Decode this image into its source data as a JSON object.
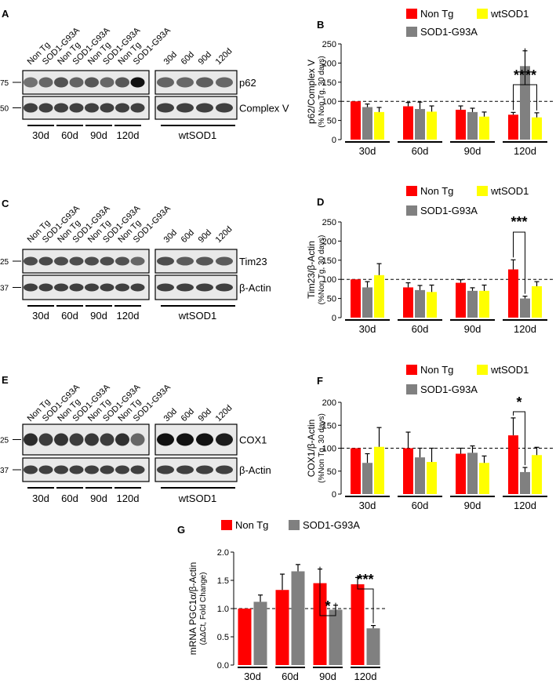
{
  "colors": {
    "non_tg": "#ff0000",
    "wt_sod1": "#ffff00",
    "sod1_g93a": "#808080"
  },
  "western_blots": [
    {
      "panel_label": "A",
      "lane_labels_left": [
        "Non Tg",
        "SOD1-G93A",
        "Non Tg",
        "SOD1-G93A",
        "Non Tg",
        "SOD1-G93A",
        "Non Tg",
        "SOD1-G93A"
      ],
      "lane_labels_right": [
        "30d",
        "60d",
        "90d",
        "120d"
      ],
      "bands": [
        {
          "name": "p62",
          "marker": "75"
        },
        {
          "name": "Complex V",
          "marker": "50"
        }
      ],
      "groups": [
        "30d",
        "60d",
        "90d",
        "120d"
      ],
      "wt_group": "wtSOD1"
    },
    {
      "panel_label": "C",
      "lane_labels_left": [
        "Non Tg",
        "SOD1-G93A",
        "Non Tg",
        "SOD1-G93A",
        "Non Tg",
        "SOD1-G93A",
        "Non Tg",
        "SOD1-G93A"
      ],
      "lane_labels_right": [
        "30d",
        "60d",
        "90d",
        "120d"
      ],
      "bands": [
        {
          "name": "Tim23",
          "marker": "25"
        },
        {
          "name": "β-Actin",
          "marker": "37"
        }
      ],
      "groups": [
        "30d",
        "60d",
        "90d",
        "120d"
      ],
      "wt_group": "wtSOD1"
    },
    {
      "panel_label": "E",
      "lane_labels_left": [
        "Non Tg",
        "SOD1-G93A",
        "Non Tg",
        "SOD1-G93A",
        "Non Tg",
        "SOD1-G93A",
        "Non Tg",
        "SOD1-G93A"
      ],
      "lane_labels_right": [
        "30d",
        "60d",
        "90d",
        "120d"
      ],
      "bands": [
        {
          "name": "COX1",
          "marker": "25"
        },
        {
          "name": "β-Actin",
          "marker": "37"
        }
      ],
      "groups": [
        "30d",
        "60d",
        "90d",
        "120d"
      ],
      "wt_group": "wtSOD1"
    }
  ],
  "chart_data": [
    {
      "panel_label": "B",
      "type": "bar",
      "ylabel": "p62/Complex V",
      "ylabel2": "(% Non Tg, 30 days)",
      "ylim": [
        0,
        250
      ],
      "yticks": [
        0,
        50,
        100,
        150,
        200,
        250
      ],
      "categories": [
        "30d",
        "60d",
        "90d",
        "120d"
      ],
      "reference_line": 100,
      "legend": [
        "Non Tg",
        "wtSOD1",
        "SOD1-G93A"
      ],
      "series": [
        {
          "name": "Non Tg",
          "values": [
            100,
            87,
            78,
            65
          ],
          "errors": [
            0,
            10,
            10,
            6
          ]
        },
        {
          "name": "SOD1-G93A",
          "values": [
            85,
            80,
            72,
            192
          ],
          "errors": [
            8,
            18,
            10,
            40
          ]
        },
        {
          "name": "wtSOD1",
          "values": [
            72,
            73,
            60,
            58
          ],
          "errors": [
            12,
            15,
            12,
            12
          ]
        }
      ],
      "significance": [
        {
          "text": "**"
        },
        {
          "text": "**"
        }
      ]
    },
    {
      "panel_label": "D",
      "type": "bar",
      "ylabel": "Tim23/β-Actin",
      "ylabel2": "(%Non Tg, 30 days)",
      "ylim": [
        0,
        250
      ],
      "yticks": [
        0,
        50,
        100,
        150,
        200,
        250
      ],
      "categories": [
        "30d",
        "60d",
        "90d",
        "120d"
      ],
      "reference_line": 100,
      "legend": [
        "Non Tg",
        "wtSOD1",
        "SOD1-G93A"
      ],
      "series": [
        {
          "name": "Non Tg",
          "values": [
            100,
            79,
            91,
            126
          ],
          "errors": [
            0,
            12,
            8,
            25
          ]
        },
        {
          "name": "SOD1-G93A",
          "values": [
            79,
            72,
            70,
            50
          ],
          "errors": [
            15,
            12,
            8,
            6
          ]
        },
        {
          "name": "wtSOD1",
          "values": [
            111,
            67,
            70,
            82
          ],
          "errors": [
            30,
            18,
            15,
            12
          ]
        }
      ],
      "significance": [
        {
          "text": "***"
        }
      ]
    },
    {
      "panel_label": "F",
      "type": "bar",
      "ylabel": "COX1/β-Actin",
      "ylabel2": "(%Non Tg, 30 days)",
      "ylim": [
        0,
        200
      ],
      "yticks": [
        0,
        50,
        100,
        150,
        200
      ],
      "categories": [
        "30d",
        "60d",
        "90d",
        "120d"
      ],
      "reference_line": 100,
      "legend": [
        "Non Tg",
        "wtSOD1",
        "SOD1-G93A"
      ],
      "series": [
        {
          "name": "Non Tg",
          "values": [
            100,
            100,
            88,
            128
          ],
          "errors": [
            0,
            35,
            12,
            38
          ]
        },
        {
          "name": "SOD1-G93A",
          "values": [
            68,
            80,
            90,
            48
          ],
          "errors": [
            20,
            20,
            15,
            10
          ]
        },
        {
          "name": "wtSOD1",
          "values": [
            103,
            70,
            68,
            85
          ],
          "errors": [
            42,
            30,
            15,
            17
          ]
        }
      ],
      "significance": [
        {
          "text": "*"
        }
      ]
    },
    {
      "panel_label": "G",
      "type": "bar",
      "ylabel": "mRNA PGC1α/β-Actin",
      "ylabel2": "(ΔΔCt, Fold Change)",
      "ylim": [
        0,
        2.0
      ],
      "yticks": [
        "0.0",
        "0.5",
        "1.0",
        "1.5",
        "2.0"
      ],
      "categories": [
        "30d",
        "60d",
        "90d",
        "120d"
      ],
      "reference_line": 1.0,
      "legend": [
        "Non Tg",
        "SOD1-G93A"
      ],
      "series": [
        {
          "name": "Non Tg",
          "values": [
            1.0,
            1.33,
            1.45,
            1.43
          ],
          "errors": [
            0,
            0.28,
            0.25,
            0.12
          ]
        },
        {
          "name": "SOD1-G93A",
          "values": [
            1.12,
            1.66,
            0.98,
            0.65
          ],
          "errors": [
            0.12,
            0.12,
            0.08,
            0.05
          ]
        }
      ],
      "significance": [
        {
          "text": "*"
        },
        {
          "text": "***"
        }
      ]
    }
  ]
}
